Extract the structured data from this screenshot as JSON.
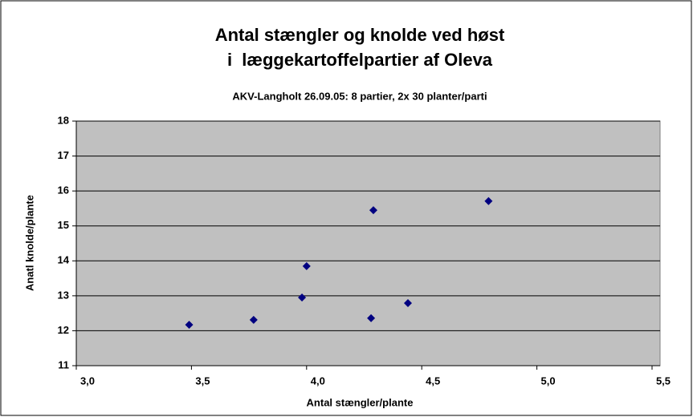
{
  "chart_data": {
    "type": "scatter",
    "title": [
      "Antal stængler og knolde ved høst",
      "i  læggekartoffelpartier af Oleva"
    ],
    "subtitle": "AKV-Langholt 26.09.05: 8 partier, 2x 30 planter/parti",
    "x_label": "Antal stængler/plante",
    "y_label": "Anatl knolde/plante",
    "x": [
      3.49,
      3.77,
      3.98,
      4.0,
      4.28,
      4.29,
      4.44,
      4.79
    ],
    "values": [
      12.17,
      12.31,
      12.95,
      13.85,
      12.36,
      15.45,
      12.79,
      15.71
    ],
    "color": "#000080",
    "xlim": [
      3,
      5.5
    ],
    "xticks": [
      {
        "value": 3,
        "label": "3,0"
      },
      {
        "value": 3.5,
        "label": "3,5"
      },
      {
        "value": 4,
        "label": "4,0"
      },
      {
        "value": 4.5,
        "label": "4,5"
      },
      {
        "value": 5,
        "label": "5,0"
      },
      {
        "value": 5.5,
        "label": "5,5"
      }
    ],
    "ylim": [
      11,
      18
    ],
    "yticks": [
      11,
      12,
      13,
      14,
      15,
      16,
      17,
      18
    ],
    "grid": true
  }
}
